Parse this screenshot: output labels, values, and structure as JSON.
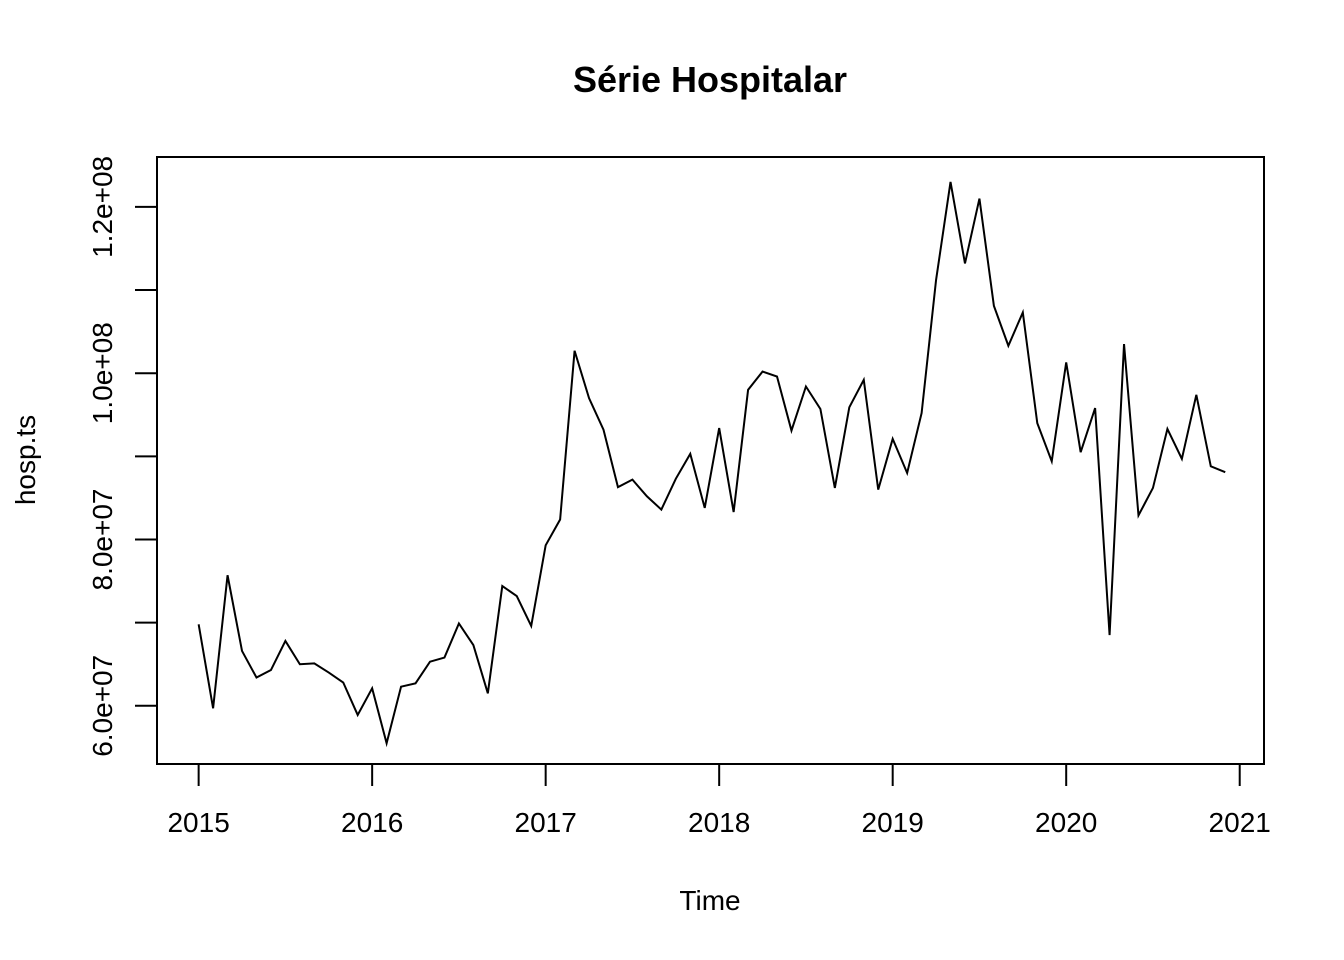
{
  "chart_data": {
    "type": "line",
    "title": "Série Hospitalar",
    "xlabel": "Time",
    "ylabel": "hosp.ts",
    "xlim": [
      2014.76,
      2021.14
    ],
    "ylim": [
      53000000,
      126000000
    ],
    "x_ticks": [
      2015,
      2016,
      2017,
      2018,
      2019,
      2020,
      2021
    ],
    "x_tick_labels": [
      "2015",
      "2016",
      "2017",
      "2018",
      "2019",
      "2020",
      "2021"
    ],
    "y_ticks": [
      60000000,
      70000000,
      80000000,
      90000000,
      100000000,
      110000000,
      120000000
    ],
    "y_tick_labels": [
      "6.0e+07",
      "",
      "8.0e+07",
      "",
      "1.0e+08",
      "",
      "1.2e+08"
    ],
    "grid": false,
    "line_color": "#000000",
    "series": [
      {
        "start": 2015,
        "frequency": 12,
        "values": [
          69800000,
          59700000,
          75700000,
          66600000,
          63400000,
          64300000,
          67800000,
          65000000,
          65100000,
          64000000,
          62800000,
          58900000,
          62100000,
          55500000,
          62300000,
          62700000,
          65300000,
          65800000,
          69900000,
          67300000,
          61500000,
          74400000,
          73200000,
          69600000,
          79300000,
          82400000,
          102700000,
          97000000,
          93200000,
          86300000,
          87200000,
          85200000,
          83600000,
          87300000,
          90300000,
          83800000,
          93400000,
          83300000,
          98000000,
          100200000,
          99600000,
          93100000,
          98400000,
          95700000,
          86200000,
          95900000,
          99200000,
          86000000,
          92100000,
          88000000,
          95200000,
          111200000,
          123000000,
          113200000,
          121000000,
          108100000,
          103300000,
          107300000,
          94000000,
          89400000,
          101300000,
          90500000,
          95800000,
          68500000,
          103500000,
          82900000,
          86200000,
          93300000,
          89700000,
          97400000,
          88800000,
          88100000
        ]
      }
    ]
  }
}
